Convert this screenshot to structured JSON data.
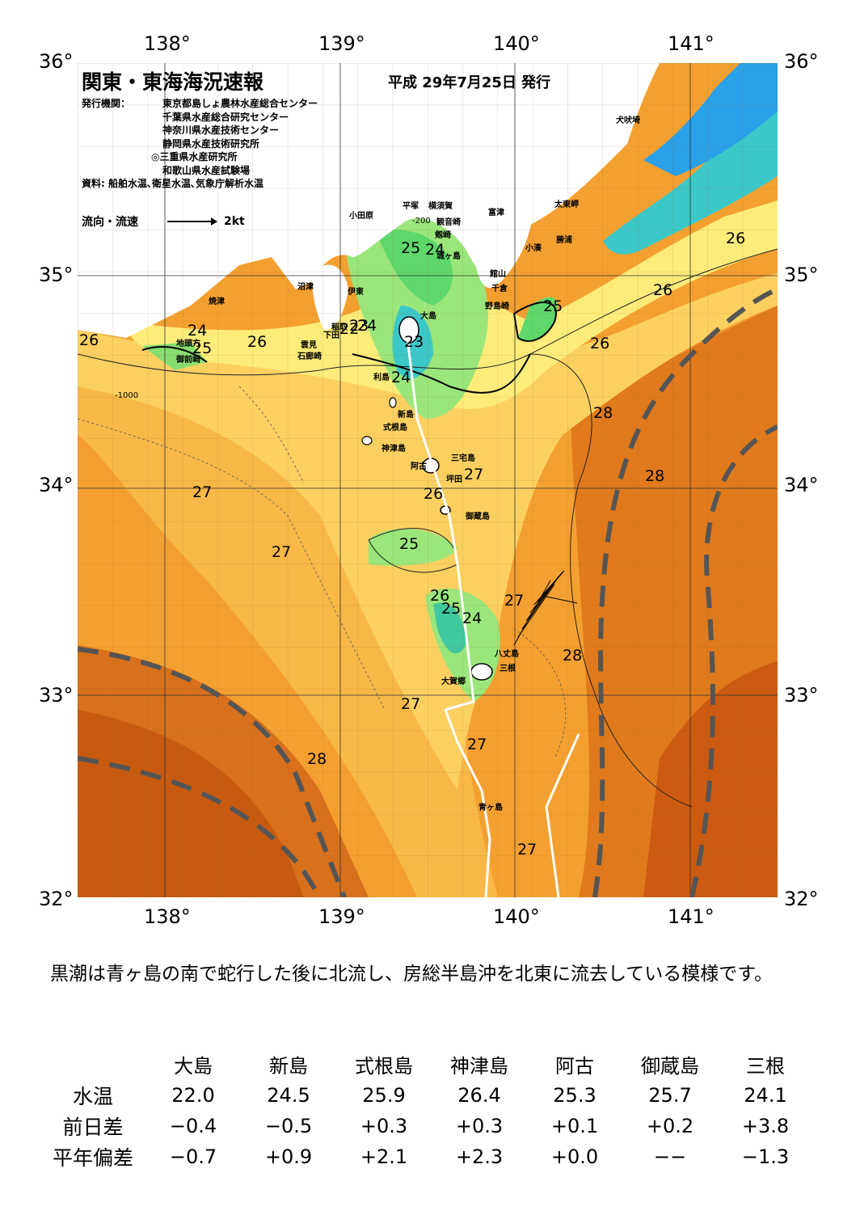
{
  "map": {
    "title": "関東・東海海況速報",
    "date": "平成 29年7月25日 発行",
    "publisher_label": "発行機関：",
    "publishers": [
      "東京都島しょ農林水産総合センター",
      "千葉県水産総合研究センター",
      "神奈川県水産技術センター",
      "静岡県水産技術研究所",
      "◎三重県水産研究所",
      "和歌山県水産試験場"
    ],
    "sources": "資料: 船舶水温､衛星水温､気象庁解析水温",
    "legend_label": "流向・流速",
    "legend_speed": "2kt",
    "lon_ticks": [
      "138°",
      "139°",
      "140°",
      "141°"
    ],
    "lat_ticks": [
      "36°",
      "35°",
      "34°",
      "33°",
      "32°"
    ],
    "place_names": [
      {
        "name": "犬吠埼"
      },
      {
        "name": "太東岬"
      },
      {
        "name": "勝浦"
      },
      {
        "name": "小湊"
      },
      {
        "name": "富津"
      },
      {
        "name": "館山"
      },
      {
        "name": "千倉"
      },
      {
        "name": "野島崎"
      },
      {
        "name": "横須賀"
      },
      {
        "name": "平塚"
      },
      {
        "name": "観音崎"
      },
      {
        "name": "剱崎"
      },
      {
        "name": "城ヶ島"
      },
      {
        "name": "小田原"
      },
      {
        "name": "沼津"
      },
      {
        "name": "伊東"
      },
      {
        "name": "焼津"
      },
      {
        "name": "地頭方"
      },
      {
        "name": "御前崎"
      },
      {
        "name": "雲見"
      },
      {
        "name": "石廊崎"
      },
      {
        "name": "下田"
      },
      {
        "name": "稲取"
      },
      {
        "name": "大島"
      },
      {
        "name": "利島"
      },
      {
        "name": "新島"
      },
      {
        "name": "式根島"
      },
      {
        "name": "神津島"
      },
      {
        "name": "阿古"
      },
      {
        "name": "三宅島"
      },
      {
        "name": "坪田"
      },
      {
        "name": "御蔵島"
      },
      {
        "name": "八丈島"
      },
      {
        "name": "三根"
      },
      {
        "name": "大賀郷"
      },
      {
        "name": "青ヶ島"
      }
    ],
    "isotherm_labels": [
      {
        "text": "26"
      },
      {
        "text": "24"
      },
      {
        "text": "25"
      },
      {
        "text": "26"
      },
      {
        "text": "22"
      },
      {
        "text": "23"
      },
      {
        "text": "24"
      },
      {
        "text": "25"
      },
      {
        "text": "24"
      },
      {
        "text": "23"
      },
      {
        "text": "24"
      },
      {
        "text": "25"
      },
      {
        "text": "26"
      },
      {
        "text": "26"
      },
      {
        "text": "26"
      },
      {
        "text": "28"
      },
      {
        "text": "28"
      },
      {
        "text": "27"
      },
      {
        "text": "26"
      },
      {
        "text": "27"
      },
      {
        "text": "27"
      },
      {
        "text": "25"
      },
      {
        "text": "26"
      },
      {
        "text": "25"
      },
      {
        "text": "24"
      },
      {
        "text": "27"
      },
      {
        "text": "28"
      },
      {
        "text": "27"
      },
      {
        "text": "27"
      },
      {
        "text": "28"
      },
      {
        "text": "27"
      }
    ],
    "depth_labels": [
      "-200",
      "-1000"
    ],
    "colors": {
      "deep_orange": "#cc5a10",
      "orange": "#f08a24",
      "light_orange": "#f8b040",
      "yellow_orange": "#fcd060",
      "pale_yellow": "#fdf080",
      "light_green": "#aee87a",
      "green": "#5ed86a",
      "cyan": "#3cc8c8",
      "blue": "#2aa0e8",
      "kuroshio_axis": "#555555"
    }
  },
  "summary": "黒潮は青ヶ島の南で蛇行した後に北流し、房総半島沖を北東に流去している模様です。",
  "observations": {
    "stations": [
      "大島",
      "新島",
      "式根島",
      "神津島",
      "阿古",
      "御蔵島",
      "三根"
    ],
    "rows": [
      {
        "label": "水温",
        "values": [
          "22.0",
          "24.5",
          "25.9",
          "26.4",
          "25.3",
          "25.7",
          "24.1"
        ]
      },
      {
        "label": "前日差",
        "values": [
          "−0.4",
          "−0.5",
          "+0.3",
          "+0.3",
          "+0.1",
          "+0.2",
          "+3.8"
        ]
      },
      {
        "label": "平年偏差",
        "values": [
          "−0.7",
          "+0.9",
          "+2.1",
          "+2.3",
          "+0.0",
          "−−",
          "−1.3"
        ]
      }
    ]
  }
}
